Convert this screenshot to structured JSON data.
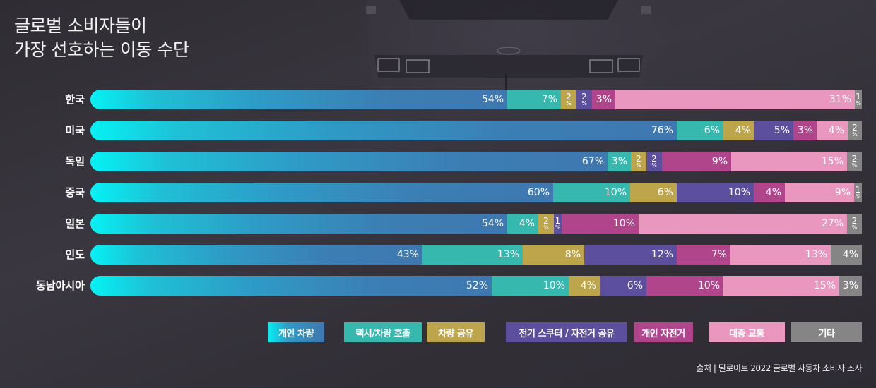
{
  "title_lines": [
    "글로벌 소비자들이",
    "가장 선호하는 이동 수단"
  ],
  "colors": {
    "personal_vehicle": "#3f78b0",
    "taxi_ride_hailing": "#36b8ae",
    "car_sharing": "#bda54c",
    "scooter_bike_sharing": "#5c4f9e",
    "personal_bicycle": "#b0458b",
    "public_transit": "#ea97c0",
    "other": "#858585"
  },
  "legend": [
    {
      "label": "개인 차량",
      "key": "personal_vehicle"
    },
    {
      "label": "택시/차량 호출",
      "key": "taxi_ride_hailing"
    },
    {
      "label": "차량 공유",
      "key": "car_sharing"
    },
    {
      "label": "전기 스쿠터 / 자전거 공유",
      "key": "scooter_bike_sharing"
    },
    {
      "label": "개인 자전거",
      "key": "personal_bicycle"
    },
    {
      "label": "대중 교통",
      "key": "public_transit"
    },
    {
      "label": "기타",
      "key": "other"
    }
  ],
  "source": "출처 | 딜로이트 2022 글로벌 자동차 소비자 조사",
  "chart_data": {
    "type": "bar",
    "orientation": "horizontal",
    "stacked": true,
    "normalized_100": true,
    "title": "글로벌 소비자들이 가장 선호하는 이동 수단",
    "xlabel": "",
    "ylabel": "",
    "unit": "%",
    "xlim": [
      0,
      100
    ],
    "grid": false,
    "legend_position": "bottom-right",
    "categories": [
      "한국",
      "미국",
      "독일",
      "중국",
      "일본",
      "인도",
      "동남아시아"
    ],
    "series": [
      {
        "name": "개인 차량",
        "color": "#3f78b0",
        "values": [
          54,
          76,
          67,
          60,
          54,
          43,
          52
        ]
      },
      {
        "name": "택시/차량 호출",
        "color": "#36b8ae",
        "values": [
          7,
          6,
          3,
          10,
          4,
          13,
          10
        ]
      },
      {
        "name": "차량 공유",
        "color": "#bda54c",
        "values": [
          2,
          4,
          2,
          6,
          2,
          8,
          4
        ]
      },
      {
        "name": "전기 스쿠터 / 자전거 공유",
        "color": "#5c4f9e",
        "values": [
          2,
          5,
          2,
          10,
          1,
          12,
          6
        ]
      },
      {
        "name": "개인 자전거",
        "color": "#b0458b",
        "values": [
          3,
          3,
          9,
          4,
          10,
          7,
          10
        ]
      },
      {
        "name": "대중 교통",
        "color": "#ea97c0",
        "values": [
          31,
          4,
          15,
          9,
          27,
          13,
          15
        ]
      },
      {
        "name": "기타",
        "color": "#858585",
        "values": [
          1,
          2,
          2,
          1,
          2,
          4,
          3
        ]
      }
    ],
    "source": "출처 | 딜로이트 2022 글로벌 자동차 소비자 조사"
  }
}
